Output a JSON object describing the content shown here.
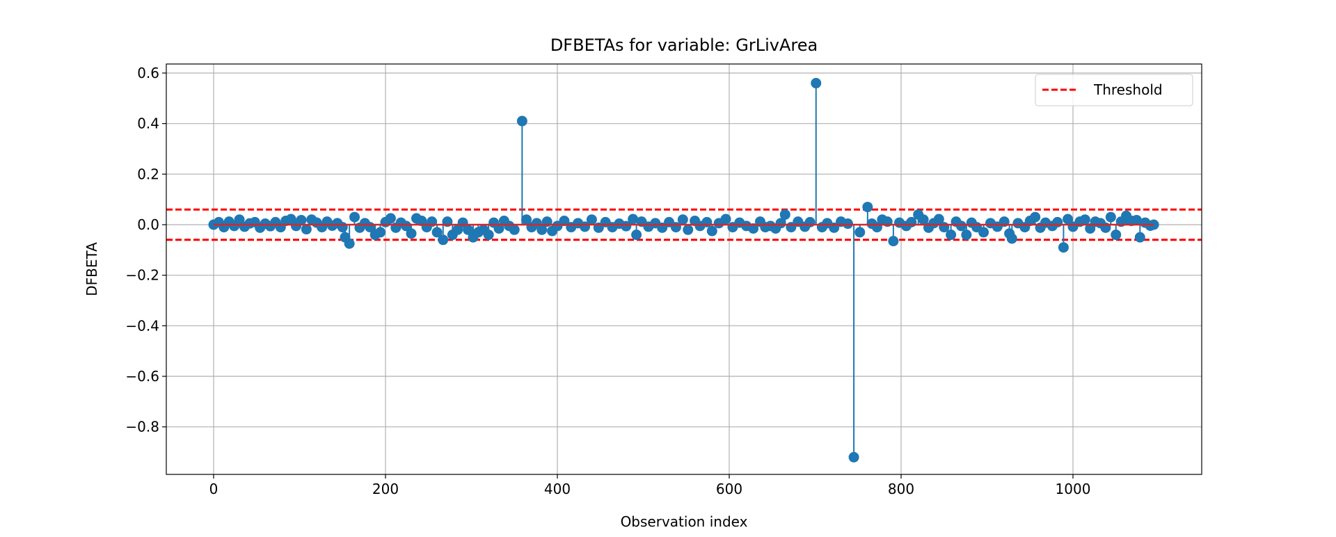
{
  "chart_data": {
    "type": "stem",
    "title": "DFBETAs for variable: GrLivArea",
    "xlabel": "Observation index",
    "ylabel": "DFBETA",
    "xlim": [
      -55,
      1149
    ],
    "ylim": [
      -0.99,
      0.64
    ],
    "xticks": [
      0,
      200,
      400,
      600,
      800,
      1000
    ],
    "xtick_labels": [
      "0",
      "200",
      "400",
      "600",
      "800",
      "1000"
    ],
    "yticks": [
      0.6,
      0.4,
      0.2,
      0.0,
      -0.2,
      -0.4,
      -0.6,
      -0.8
    ],
    "ytick_labels": [
      "0.6",
      "0.4",
      "0.2",
      "0.0",
      "−0.2",
      "−0.4",
      "−0.6",
      "−0.8"
    ],
    "grid": true,
    "legend": {
      "placement": "top-right",
      "entries": [
        {
          "label": "Threshold",
          "style": "dashed",
          "color": "#ff0000"
        }
      ]
    },
    "threshold": 0.06,
    "colors": {
      "stem": "#1f77b4",
      "baseline": "#d62728",
      "threshold": "#ff0000",
      "grid": "#b0b0b0"
    },
    "points": [
      [
        0,
        0.0
      ],
      [
        6,
        0.01
      ],
      [
        12,
        -0.01
      ],
      [
        18,
        0.012
      ],
      [
        24,
        -0.005
      ],
      [
        30,
        0.02
      ],
      [
        36,
        -0.008
      ],
      [
        42,
        0.005
      ],
      [
        48,
        0.01
      ],
      [
        54,
        -0.012
      ],
      [
        60,
        0.004
      ],
      [
        66,
        -0.006
      ],
      [
        72,
        0.01
      ],
      [
        78,
        -0.01
      ],
      [
        84,
        0.015
      ],
      [
        90,
        0.022
      ],
      [
        96,
        -0.005
      ],
      [
        102,
        0.018
      ],
      [
        108,
        -0.018
      ],
      [
        114,
        0.02
      ],
      [
        120,
        0.008
      ],
      [
        126,
        -0.01
      ],
      [
        132,
        0.012
      ],
      [
        138,
        -0.004
      ],
      [
        144,
        0.006
      ],
      [
        150,
        -0.01
      ],
      [
        153,
        -0.05
      ],
      [
        158,
        -0.075
      ],
      [
        164,
        0.03
      ],
      [
        170,
        -0.012
      ],
      [
        176,
        0.006
      ],
      [
        182,
        -0.01
      ],
      [
        188,
        -0.04
      ],
      [
        194,
        -0.03
      ],
      [
        200,
        0.01
      ],
      [
        206,
        0.025
      ],
      [
        212,
        -0.012
      ],
      [
        218,
        0.008
      ],
      [
        224,
        -0.005
      ],
      [
        230,
        -0.035
      ],
      [
        236,
        0.025
      ],
      [
        242,
        0.015
      ],
      [
        248,
        -0.01
      ],
      [
        254,
        0.012
      ],
      [
        260,
        -0.03
      ],
      [
        267,
        -0.06
      ],
      [
        272,
        0.012
      ],
      [
        278,
        -0.04
      ],
      [
        284,
        -0.02
      ],
      [
        290,
        0.008
      ],
      [
        296,
        -0.02
      ],
      [
        302,
        -0.05
      ],
      [
        308,
        -0.03
      ],
      [
        314,
        -0.02
      ],
      [
        320,
        -0.04
      ],
      [
        326,
        0.008
      ],
      [
        332,
        -0.015
      ],
      [
        338,
        0.015
      ],
      [
        344,
        -0.005
      ],
      [
        350,
        -0.02
      ],
      [
        359,
        0.41
      ],
      [
        364,
        0.02
      ],
      [
        370,
        -0.01
      ],
      [
        376,
        0.006
      ],
      [
        382,
        -0.02
      ],
      [
        388,
        0.012
      ],
      [
        394,
        -0.025
      ],
      [
        400,
        -0.005
      ],
      [
        408,
        0.015
      ],
      [
        416,
        -0.01
      ],
      [
        424,
        0.006
      ],
      [
        432,
        -0.008
      ],
      [
        440,
        0.02
      ],
      [
        448,
        -0.012
      ],
      [
        456,
        0.01
      ],
      [
        464,
        -0.01
      ],
      [
        472,
        0.004
      ],
      [
        480,
        -0.006
      ],
      [
        488,
        0.022
      ],
      [
        492,
        -0.04
      ],
      [
        498,
        0.012
      ],
      [
        506,
        -0.008
      ],
      [
        514,
        0.006
      ],
      [
        522,
        -0.012
      ],
      [
        530,
        0.01
      ],
      [
        538,
        -0.01
      ],
      [
        546,
        0.02
      ],
      [
        552,
        -0.02
      ],
      [
        560,
        0.015
      ],
      [
        566,
        -0.005
      ],
      [
        574,
        0.01
      ],
      [
        580,
        -0.025
      ],
      [
        588,
        0.006
      ],
      [
        596,
        0.022
      ],
      [
        604,
        -0.01
      ],
      [
        612,
        0.008
      ],
      [
        620,
        -0.005
      ],
      [
        628,
        -0.015
      ],
      [
        636,
        0.012
      ],
      [
        642,
        -0.01
      ],
      [
        648,
        -0.005
      ],
      [
        654,
        -0.015
      ],
      [
        660,
        0.006
      ],
      [
        665,
        0.04
      ],
      [
        672,
        -0.01
      ],
      [
        680,
        0.012
      ],
      [
        688,
        -0.008
      ],
      [
        694,
        0.01
      ],
      [
        701,
        0.56
      ],
      [
        708,
        -0.01
      ],
      [
        714,
        0.006
      ],
      [
        722,
        -0.012
      ],
      [
        730,
        0.012
      ],
      [
        738,
        0.004
      ],
      [
        745,
        -0.92
      ],
      [
        752,
        -0.03
      ],
      [
        761,
        0.07
      ],
      [
        766,
        0.004
      ],
      [
        772,
        -0.01
      ],
      [
        778,
        0.02
      ],
      [
        784,
        0.012
      ],
      [
        791,
        -0.065
      ],
      [
        798,
        0.008
      ],
      [
        806,
        -0.005
      ],
      [
        812,
        0.01
      ],
      [
        820,
        0.04
      ],
      [
        826,
        0.02
      ],
      [
        832,
        -0.012
      ],
      [
        838,
        0.006
      ],
      [
        844,
        0.022
      ],
      [
        850,
        -0.01
      ],
      [
        858,
        -0.04
      ],
      [
        864,
        0.012
      ],
      [
        870,
        -0.005
      ],
      [
        876,
        -0.04
      ],
      [
        882,
        0.008
      ],
      [
        888,
        -0.01
      ],
      [
        896,
        -0.03
      ],
      [
        904,
        0.006
      ],
      [
        912,
        -0.008
      ],
      [
        920,
        0.012
      ],
      [
        926,
        -0.035
      ],
      [
        929,
        -0.055
      ],
      [
        936,
        0.006
      ],
      [
        944,
        -0.01
      ],
      [
        950,
        0.015
      ],
      [
        956,
        0.03
      ],
      [
        962,
        -0.012
      ],
      [
        968,
        0.008
      ],
      [
        976,
        -0.005
      ],
      [
        982,
        0.01
      ],
      [
        989,
        -0.09
      ],
      [
        994,
        0.022
      ],
      [
        1000,
        -0.008
      ],
      [
        1008,
        0.012
      ],
      [
        1014,
        0.02
      ],
      [
        1020,
        -0.015
      ],
      [
        1026,
        0.012
      ],
      [
        1032,
        0.006
      ],
      [
        1038,
        -0.012
      ],
      [
        1044,
        0.03
      ],
      [
        1050,
        -0.04
      ],
      [
        1056,
        0.012
      ],
      [
        1062,
        0.035
      ],
      [
        1068,
        0.015
      ],
      [
        1074,
        0.018
      ],
      [
        1078,
        -0.05
      ],
      [
        1084,
        0.008
      ],
      [
        1090,
        -0.004
      ],
      [
        1094,
        0.0
      ]
    ]
  }
}
